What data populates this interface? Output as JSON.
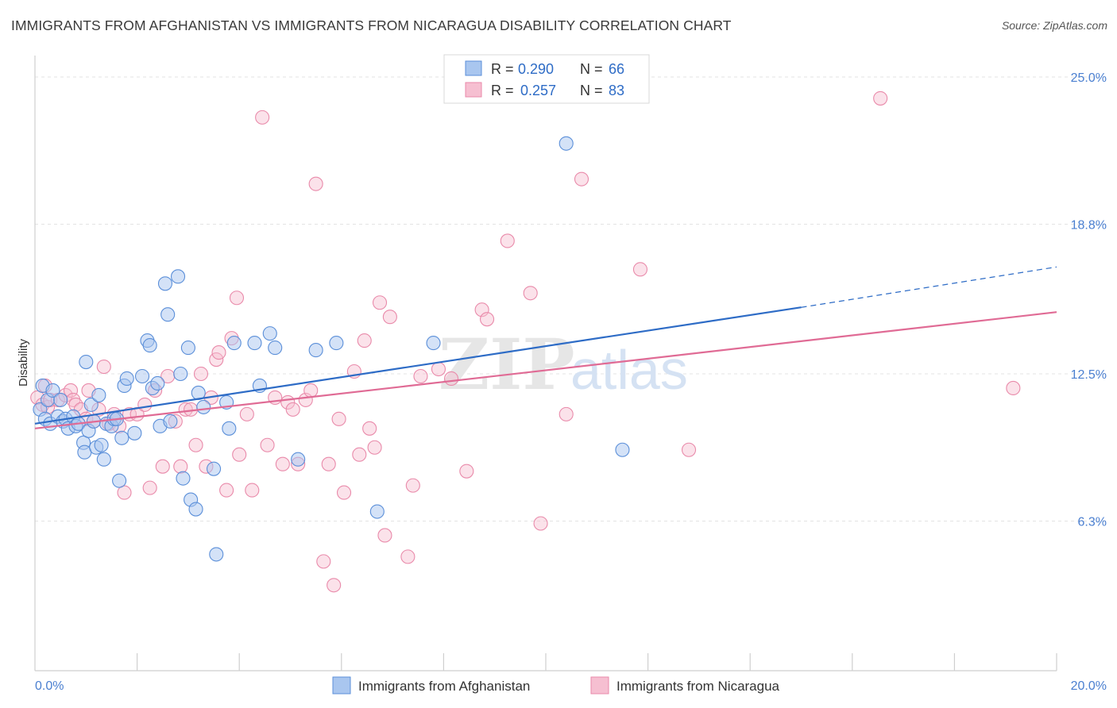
{
  "title": "IMMIGRANTS FROM AFGHANISTAN VS IMMIGRANTS FROM NICARAGUA DISABILITY CORRELATION CHART",
  "source": "Source: ZipAtlas.com",
  "watermark": {
    "zip": "ZIP",
    "atlas": "atlas"
  },
  "colors": {
    "afghanistan_fill": "#a9c6ef",
    "afghanistan_stroke": "#5b8fd9",
    "afghanistan_line": "#2e6cc6",
    "nicaragua_fill": "#f6bfd1",
    "nicaragua_stroke": "#e98aaa",
    "nicaragua_line": "#e06b95",
    "grid": "#e3e3e3",
    "tick_label": "#4a7fd0"
  },
  "legend": {
    "r_label": "R =",
    "n_label": "N =",
    "afghanistan": {
      "r": "0.290",
      "n": "66"
    },
    "nicaragua": {
      "r": "0.257",
      "n": "83"
    }
  },
  "chart_data": {
    "type": "scatter",
    "title": "IMMIGRANTS FROM AFGHANISTAN VS IMMIGRANTS FROM NICARAGUA DISABILITY CORRELATION CHART",
    "xlabel": "",
    "ylabel": "Disability",
    "xlim": [
      0,
      20
    ],
    "ylim": [
      0,
      25.9
    ],
    "x_tick_labels": [
      "0.0%",
      "20.0%"
    ],
    "y_ticks": [
      6.3,
      12.5,
      18.8,
      25.0
    ],
    "y_tick_labels": [
      "6.3%",
      "12.5%",
      "18.8%",
      "25.0%"
    ],
    "grid": true,
    "legend_position": "top-center",
    "series": [
      {
        "name": "Immigrants from Afghanistan",
        "r": 0.29,
        "n": 66,
        "trend": {
          "x0": 0.0,
          "y0": 10.4,
          "x1": 15.0,
          "y1": 15.3,
          "dashed_to_x": 20.0,
          "dashed_to_y": 17.0
        },
        "points": [
          [
            0.1,
            11.0
          ],
          [
            0.15,
            12.0
          ],
          [
            0.2,
            10.6
          ],
          [
            0.25,
            11.4
          ],
          [
            0.3,
            10.4
          ],
          [
            0.35,
            11.8
          ],
          [
            0.45,
            10.7
          ],
          [
            0.5,
            11.4
          ],
          [
            0.55,
            10.5
          ],
          [
            0.6,
            10.6
          ],
          [
            0.65,
            10.2
          ],
          [
            0.75,
            10.7
          ],
          [
            0.8,
            10.3
          ],
          [
            0.85,
            10.4
          ],
          [
            0.95,
            9.6
          ],
          [
            0.97,
            9.2
          ],
          [
            1.0,
            13.0
          ],
          [
            1.05,
            10.1
          ],
          [
            1.1,
            11.2
          ],
          [
            1.15,
            10.5
          ],
          [
            1.2,
            9.4
          ],
          [
            1.25,
            11.6
          ],
          [
            1.3,
            9.5
          ],
          [
            1.35,
            8.9
          ],
          [
            1.4,
            10.4
          ],
          [
            1.5,
            10.3
          ],
          [
            1.55,
            10.6
          ],
          [
            1.6,
            10.6
          ],
          [
            1.65,
            8.0
          ],
          [
            1.7,
            9.8
          ],
          [
            1.75,
            12.0
          ],
          [
            1.8,
            12.3
          ],
          [
            1.95,
            10.0
          ],
          [
            2.1,
            12.4
          ],
          [
            2.2,
            13.9
          ],
          [
            2.25,
            13.7
          ],
          [
            2.3,
            11.9
          ],
          [
            2.4,
            12.1
          ],
          [
            2.45,
            10.3
          ],
          [
            2.55,
            16.3
          ],
          [
            2.6,
            15.0
          ],
          [
            2.65,
            10.5
          ],
          [
            2.8,
            16.6
          ],
          [
            2.85,
            12.5
          ],
          [
            2.9,
            8.1
          ],
          [
            3.0,
            13.6
          ],
          [
            3.05,
            7.2
          ],
          [
            3.15,
            6.8
          ],
          [
            3.2,
            11.7
          ],
          [
            3.3,
            11.1
          ],
          [
            3.5,
            8.5
          ],
          [
            3.55,
            4.9
          ],
          [
            3.75,
            11.3
          ],
          [
            3.8,
            10.2
          ],
          [
            3.9,
            13.8
          ],
          [
            4.3,
            13.8
          ],
          [
            4.4,
            12.0
          ],
          [
            4.6,
            14.2
          ],
          [
            4.7,
            13.6
          ],
          [
            5.15,
            8.9
          ],
          [
            5.5,
            13.5
          ],
          [
            5.9,
            13.8
          ],
          [
            6.7,
            6.7
          ],
          [
            7.8,
            13.8
          ],
          [
            10.4,
            22.2
          ],
          [
            11.5,
            9.3
          ]
        ]
      },
      {
        "name": "Immigrants from Nicaragua",
        "r": 0.257,
        "n": 83,
        "trend": {
          "x0": 0.0,
          "y0": 10.2,
          "x1": 20.0,
          "y1": 15.1
        },
        "points": [
          [
            0.05,
            11.5
          ],
          [
            0.15,
            11.2
          ],
          [
            0.2,
            12.0
          ],
          [
            0.25,
            11.1
          ],
          [
            0.3,
            11.4
          ],
          [
            0.45,
            11.4
          ],
          [
            0.6,
            11.6
          ],
          [
            0.7,
            11.8
          ],
          [
            0.75,
            11.4
          ],
          [
            0.8,
            11.2
          ],
          [
            0.9,
            11.0
          ],
          [
            1.0,
            10.6
          ],
          [
            1.05,
            11.8
          ],
          [
            1.15,
            10.5
          ],
          [
            1.25,
            11.0
          ],
          [
            1.35,
            12.8
          ],
          [
            1.45,
            10.4
          ],
          [
            1.55,
            10.8
          ],
          [
            1.65,
            10.3
          ],
          [
            1.75,
            7.5
          ],
          [
            1.85,
            10.8
          ],
          [
            2.0,
            10.8
          ],
          [
            2.15,
            11.2
          ],
          [
            2.25,
            7.7
          ],
          [
            2.35,
            11.8
          ],
          [
            2.5,
            8.6
          ],
          [
            2.6,
            12.4
          ],
          [
            2.75,
            10.5
          ],
          [
            2.85,
            8.6
          ],
          [
            2.95,
            11.0
          ],
          [
            3.05,
            11.0
          ],
          [
            3.15,
            9.5
          ],
          [
            3.25,
            12.5
          ],
          [
            3.35,
            8.6
          ],
          [
            3.45,
            11.5
          ],
          [
            3.55,
            13.1
          ],
          [
            3.6,
            13.4
          ],
          [
            3.75,
            7.6
          ],
          [
            3.85,
            14.0
          ],
          [
            3.95,
            15.7
          ],
          [
            4.0,
            9.1
          ],
          [
            4.15,
            10.8
          ],
          [
            4.25,
            7.6
          ],
          [
            4.45,
            23.3
          ],
          [
            4.55,
            9.5
          ],
          [
            4.7,
            11.5
          ],
          [
            4.85,
            8.7
          ],
          [
            4.95,
            11.3
          ],
          [
            5.05,
            11.0
          ],
          [
            5.15,
            8.7
          ],
          [
            5.3,
            11.4
          ],
          [
            5.4,
            11.8
          ],
          [
            5.5,
            20.5
          ],
          [
            5.65,
            4.6
          ],
          [
            5.75,
            8.7
          ],
          [
            5.85,
            3.6
          ],
          [
            5.95,
            10.6
          ],
          [
            6.05,
            7.5
          ],
          [
            6.25,
            12.6
          ],
          [
            6.35,
            9.1
          ],
          [
            6.45,
            13.9
          ],
          [
            6.55,
            10.2
          ],
          [
            6.65,
            9.4
          ],
          [
            6.75,
            15.5
          ],
          [
            6.85,
            5.7
          ],
          [
            6.95,
            14.9
          ],
          [
            7.3,
            4.8
          ],
          [
            7.4,
            7.8
          ],
          [
            7.55,
            12.4
          ],
          [
            7.9,
            12.7
          ],
          [
            8.15,
            12.3
          ],
          [
            8.45,
            8.4
          ],
          [
            8.75,
            15.2
          ],
          [
            8.85,
            14.8
          ],
          [
            9.25,
            18.1
          ],
          [
            9.7,
            15.9
          ],
          [
            9.9,
            6.2
          ],
          [
            10.4,
            10.8
          ],
          [
            10.7,
            20.7
          ],
          [
            11.85,
            16.9
          ],
          [
            12.8,
            9.3
          ],
          [
            16.55,
            24.1
          ],
          [
            19.15,
            11.9
          ]
        ]
      }
    ]
  },
  "bottom_legend": {
    "afghanistan": "Immigrants from Afghanistan",
    "nicaragua": "Immigrants from Nicaragua"
  }
}
